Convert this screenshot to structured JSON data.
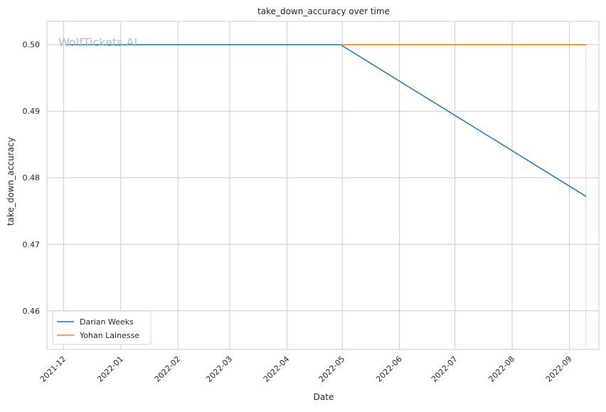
{
  "chart_data": {
    "type": "line",
    "title": "take_down_accuracy over time",
    "xlabel": "Date",
    "ylabel": "take_down_accuracy",
    "watermark": "WolfTickets.AI",
    "x_axis": {
      "type": "date",
      "range": [
        "2021-11-22",
        "2022-09-17"
      ],
      "ticks": [
        "2021-12",
        "2022-01",
        "2022-02",
        "2022-03",
        "2022-04",
        "2022-05",
        "2022-06",
        "2022-07",
        "2022-08",
        "2022-09"
      ]
    },
    "y_axis": {
      "range": [
        0.4542,
        0.5035
      ],
      "ticks": [
        "0.46",
        "0.47",
        "0.48",
        "0.49",
        "0.50"
      ]
    },
    "grid": true,
    "legend_position": "lower-left",
    "series": [
      {
        "name": "Darian Weeks",
        "color": "#1f77b4",
        "points": [
          {
            "x": "2021-12-03",
            "y": 0.5
          },
          {
            "x": "2022-04-30",
            "y": 0.5
          },
          {
            "x": "2022-09-10",
            "y": 0.4772
          }
        ]
      },
      {
        "name": "Yohan Lainesse",
        "color": "#ff7f0e",
        "points": [
          {
            "x": "2022-04-30",
            "y": 0.5
          },
          {
            "x": "2022-09-10",
            "y": 0.5
          }
        ]
      }
    ],
    "band": {
      "color": "#a6cee3",
      "x": "2022-09-10",
      "y_range": [
        0.4546,
        0.5
      ]
    }
  }
}
